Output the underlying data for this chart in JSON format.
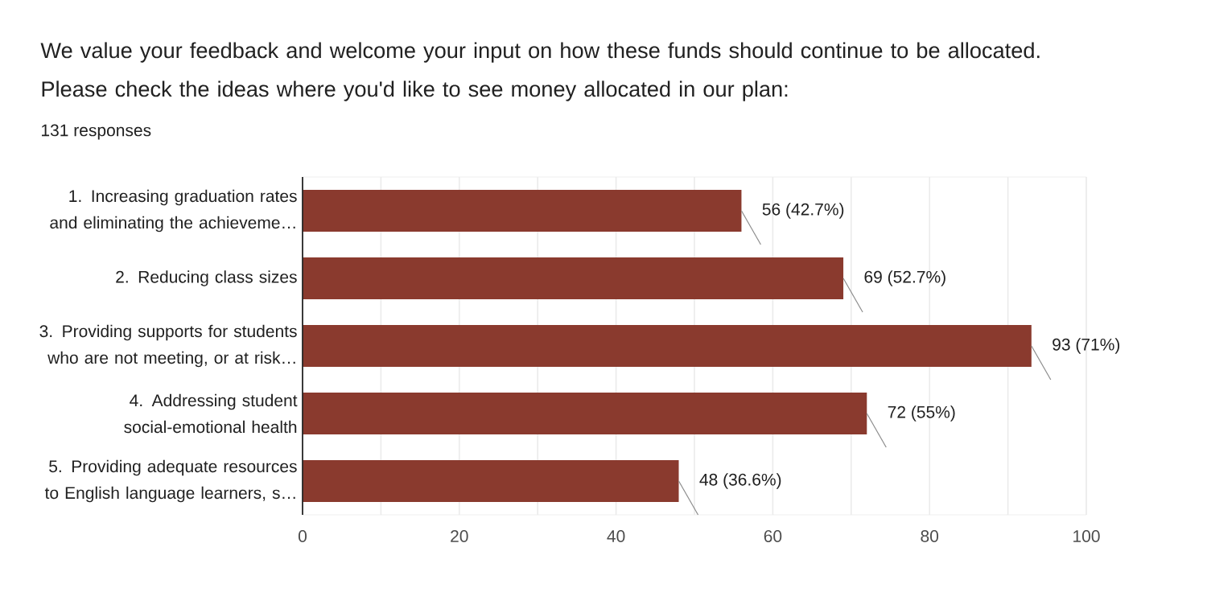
{
  "chart_data": {
    "type": "bar",
    "orientation": "horizontal",
    "title": "We value your feedback and welcome your input on how these funds should continue to be allocated. Please check the ideas where you'd like to see money allocated in our plan:",
    "subtitle": "131 responses",
    "categories": [
      "1. Increasing graduation rates and eliminating the achieveme…",
      "2. Reducing class sizes",
      "3. Providing supports for students who are not meeting, or at risk…",
      "4. Addressing student social-emotional health",
      "5. Providing adequate resources to English language learners, s…"
    ],
    "values": [
      56,
      69,
      93,
      72,
      48
    ],
    "value_labels": [
      "56 (42.7%)",
      "69 (52.7%)",
      "93 (71%)",
      "72 (55%)",
      "48 (36.6%)"
    ],
    "color": "#8a3a2e",
    "xlim": [
      0,
      100
    ],
    "xticks": [
      0,
      {
        "value": 10,
        "label": null
      },
      20,
      {
        "value": 30,
        "label": null
      },
      40,
      {
        "value": 50,
        "label": null
      },
      60,
      {
        "value": 70,
        "label": null
      },
      80,
      {
        "value": 90,
        "label": null
      },
      100
    ],
    "grid": "x"
  }
}
